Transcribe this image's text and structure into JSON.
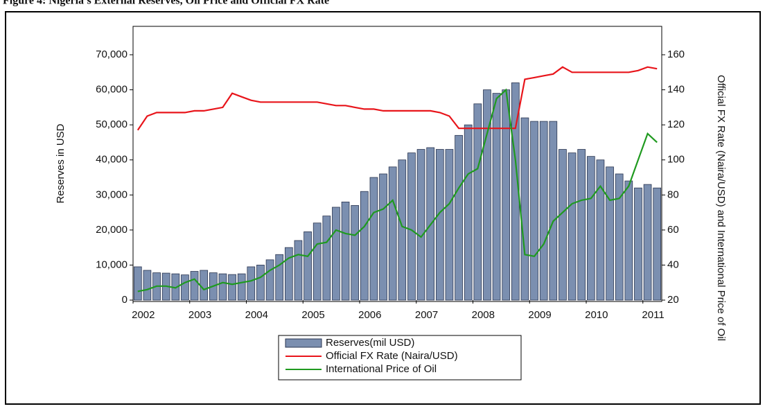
{
  "chart_data": {
    "type": "bar-line",
    "title": "Figure 4: Nigeria's External Reserves, Oil Price and Official FX Rate",
    "y_label": "Reserves in USD",
    "y2_label": "Official FX Rate (Naira/USD) and International Price of Oil",
    "categories": [
      "2002",
      null,
      null,
      null,
      null,
      null,
      "2003",
      null,
      null,
      null,
      null,
      null,
      "2004",
      null,
      null,
      null,
      null,
      null,
      "2005",
      null,
      null,
      null,
      null,
      null,
      "2006",
      null,
      null,
      null,
      null,
      null,
      "2007",
      null,
      null,
      null,
      null,
      null,
      "2008",
      null,
      null,
      null,
      null,
      null,
      "2009",
      null,
      null,
      null,
      null,
      null,
      "2010",
      null,
      null,
      null,
      null,
      null,
      "2011",
      null
    ],
    "ylim": [
      0,
      70000
    ],
    "yticks": [
      0,
      {
        "value": 10000,
        "label": "10,000"
      },
      {
        "value": 20000,
        "label": "20,000"
      },
      {
        "value": 30000,
        "label": "30,000"
      },
      {
        "value": 40000,
        "label": "40,000"
      },
      {
        "value": 50000,
        "label": "50,000"
      },
      {
        "value": 60000,
        "label": "60,000"
      },
      {
        "value": 70000,
        "label": "70,000"
      }
    ],
    "y2lim": [
      20,
      160
    ],
    "y2ticks": [
      20,
      40,
      60,
      80,
      100,
      120,
      140,
      160
    ],
    "series": [
      {
        "name": "Reserves(mil USD)",
        "type": "bar",
        "color": "#7b8fb0",
        "values": [
          9500,
          8500,
          7800,
          7700,
          7500,
          7200,
          8200,
          8500,
          7800,
          7500,
          7300,
          7500,
          9500,
          10000,
          11500,
          13000,
          15000,
          17000,
          19500,
          22000,
          24000,
          26500,
          28000,
          27000,
          31000,
          35000,
          36000,
          38000,
          40000,
          42000,
          43000,
          43500,
          43000,
          43000,
          47000,
          50000,
          56000,
          60000,
          59000,
          60000,
          62000,
          52000,
          51000,
          51000,
          51000,
          43000,
          42000,
          43000,
          41000,
          40000,
          38000,
          36000,
          34000,
          32000,
          33000,
          32000
        ]
      },
      {
        "name": "Official FX Rate (Naira/USD)",
        "type": "line",
        "axis": "y2",
        "color": "#e8141a",
        "values": [
          117,
          125,
          127,
          127,
          127,
          127,
          128,
          128,
          129,
          130,
          138,
          136,
          134,
          133,
          133,
          133,
          133,
          133,
          133,
          133,
          132,
          131,
          131,
          130,
          129,
          129,
          128,
          128,
          128,
          128,
          128,
          128,
          127,
          125,
          118,
          118,
          118,
          118,
          118,
          118,
          118,
          146,
          147,
          148,
          149,
          153,
          150,
          150,
          150,
          150,
          150,
          150,
          150,
          151,
          153,
          152
        ]
      },
      {
        "name": "International Price of Oil",
        "type": "line",
        "axis": "y2",
        "color": "#1f9a1f",
        "values": [
          25,
          26,
          28,
          28,
          27,
          30,
          32,
          26,
          28,
          30,
          29,
          30,
          31,
          33,
          37,
          40,
          44,
          46,
          45,
          52,
          53,
          60,
          58,
          57,
          62,
          70,
          72,
          77,
          62,
          60,
          56,
          63,
          70,
          75,
          84,
          92,
          95,
          115,
          135,
          140,
          100,
          46,
          45,
          52,
          65,
          70,
          75,
          77,
          78,
          85,
          77,
          78,
          85,
          100,
          115,
          110
        ]
      }
    ]
  }
}
